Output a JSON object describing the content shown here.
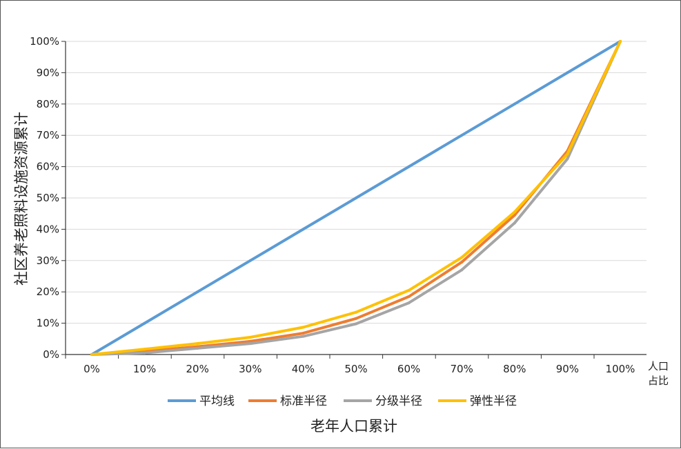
{
  "chart_data": {
    "type": "line",
    "title": "",
    "xlabel": "老年人口累计",
    "ylabel": "社区养老照料设施资源累计",
    "x_unit_lines": [
      "人口",
      "占比"
    ],
    "x": [
      "0%",
      "10%",
      "20%",
      "30%",
      "40%",
      "50%",
      "60%",
      "70%",
      "80%",
      "90%",
      "100%"
    ],
    "x_values": [
      0,
      10,
      20,
      30,
      40,
      50,
      60,
      70,
      80,
      90,
      100
    ],
    "y_ticks": [
      "0%",
      "10%",
      "20%",
      "30%",
      "40%",
      "50%",
      "60%",
      "70%",
      "80%",
      "90%",
      "100%"
    ],
    "xlim": [
      0,
      100
    ],
    "ylim": [
      0,
      100
    ],
    "grid": true,
    "legend_position": "bottom",
    "series": [
      {
        "name": "平均线",
        "color": "#5b9bd5",
        "values": [
          0,
          10,
          20,
          30,
          40,
          50,
          60,
          70,
          80,
          90,
          100
        ]
      },
      {
        "name": "标准半径",
        "color": "#ed7d31",
        "values": [
          0,
          1,
          2.5,
          4.2,
          6.8,
          11.5,
          18.5,
          29.5,
          44.5,
          65,
          100
        ]
      },
      {
        "name": "分级半径",
        "color": "#a5a5a5",
        "values": [
          0,
          0.5,
          2,
          3.5,
          5.8,
          9.8,
          16.5,
          27,
          42,
          62.5,
          100
        ]
      },
      {
        "name": "弹性半径",
        "color": "#ffc000",
        "values": [
          0,
          1.7,
          3.5,
          5.5,
          8.7,
          13.5,
          20.5,
          31,
          45.5,
          64,
          100
        ]
      }
    ]
  }
}
